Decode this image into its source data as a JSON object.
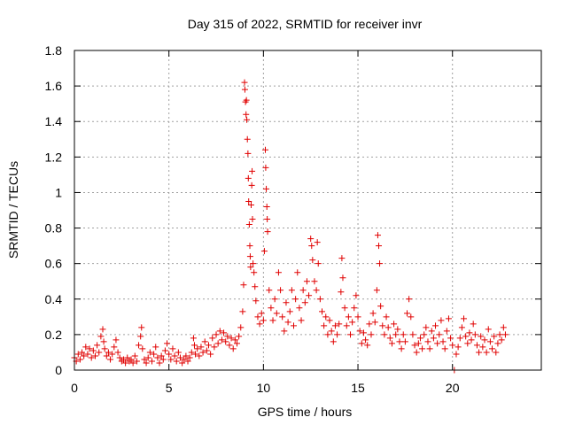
{
  "chart_data": {
    "type": "scatter",
    "title": "Day 315 of 2022, SRMTID for receiver invr",
    "xlabel": "GPS time / hours",
    "ylabel": "SRMTID / TECUs",
    "xlim": [
      0,
      24.7
    ],
    "ylim": [
      0,
      1.8
    ],
    "xticks": [
      0,
      5,
      10,
      15,
      20
    ],
    "xtick_labels": [
      "0",
      "5",
      "10",
      "15",
      "20"
    ],
    "yticks": [
      0,
      0.2,
      0.4,
      0.6,
      0.8,
      1.0,
      1.2,
      1.4,
      1.6,
      1.8
    ],
    "ytick_labels": [
      "0",
      "0.2",
      "0.4",
      "0.6",
      "0.8",
      "1",
      "1.2",
      "1.4",
      "1.6",
      "1.8"
    ],
    "grid": true,
    "marker": "plus",
    "color": "#e00000",
    "series": [
      {
        "name": "SRMTID",
        "points": [
          [
            0.0,
            0.07
          ],
          [
            0.1,
            0.05
          ],
          [
            0.2,
            0.09
          ],
          [
            0.3,
            0.06
          ],
          [
            0.4,
            0.1
          ],
          [
            0.5,
            0.08
          ],
          [
            0.6,
            0.13
          ],
          [
            0.7,
            0.09
          ],
          [
            0.8,
            0.12
          ],
          [
            0.9,
            0.07
          ],
          [
            1.0,
            0.11
          ],
          [
            1.1,
            0.08
          ],
          [
            1.2,
            0.14
          ],
          [
            1.3,
            0.1
          ],
          [
            1.4,
            0.19
          ],
          [
            1.5,
            0.23
          ],
          [
            1.55,
            0.16
          ],
          [
            1.6,
            0.12
          ],
          [
            1.7,
            0.08
          ],
          [
            1.8,
            0.1
          ],
          [
            1.9,
            0.06
          ],
          [
            2.0,
            0.09
          ],
          [
            2.1,
            0.13
          ],
          [
            2.2,
            0.17
          ],
          [
            2.3,
            0.1
          ],
          [
            2.4,
            0.07
          ],
          [
            2.5,
            0.05
          ],
          [
            2.6,
            0.06
          ],
          [
            2.7,
            0.04
          ],
          [
            2.8,
            0.07
          ],
          [
            2.9,
            0.05
          ],
          [
            3.0,
            0.06
          ],
          [
            3.1,
            0.04
          ],
          [
            3.2,
            0.08
          ],
          [
            3.3,
            0.05
          ],
          [
            3.4,
            0.14
          ],
          [
            3.5,
            0.19
          ],
          [
            3.55,
            0.24
          ],
          [
            3.6,
            0.12
          ],
          [
            3.7,
            0.06
          ],
          [
            3.8,
            0.04
          ],
          [
            3.9,
            0.07
          ],
          [
            4.0,
            0.1
          ],
          [
            4.1,
            0.05
          ],
          [
            4.2,
            0.09
          ],
          [
            4.3,
            0.13
          ],
          [
            4.4,
            0.07
          ],
          [
            4.5,
            0.04
          ],
          [
            4.6,
            0.08
          ],
          [
            4.7,
            0.06
          ],
          [
            4.8,
            0.11
          ],
          [
            4.9,
            0.15
          ],
          [
            5.0,
            0.09
          ],
          [
            5.1,
            0.06
          ],
          [
            5.2,
            0.12
          ],
          [
            5.3,
            0.08
          ],
          [
            5.4,
            0.05
          ],
          [
            5.5,
            0.1
          ],
          [
            5.6,
            0.07
          ],
          [
            5.7,
            0.04
          ],
          [
            5.8,
            0.06
          ],
          [
            5.9,
            0.08
          ],
          [
            6.0,
            0.05
          ],
          [
            6.1,
            0.07
          ],
          [
            6.2,
            0.1
          ],
          [
            6.3,
            0.18
          ],
          [
            6.35,
            0.14
          ],
          [
            6.4,
            0.09
          ],
          [
            6.5,
            0.12
          ],
          [
            6.6,
            0.08
          ],
          [
            6.7,
            0.13
          ],
          [
            6.8,
            0.1
          ],
          [
            6.9,
            0.16
          ],
          [
            7.0,
            0.11
          ],
          [
            7.1,
            0.14
          ],
          [
            7.2,
            0.09
          ],
          [
            7.3,
            0.18
          ],
          [
            7.4,
            0.13
          ],
          [
            7.5,
            0.2
          ],
          [
            7.6,
            0.15
          ],
          [
            7.7,
            0.22
          ],
          [
            7.8,
            0.17
          ],
          [
            7.9,
            0.21
          ],
          [
            8.0,
            0.16
          ],
          [
            8.1,
            0.19
          ],
          [
            8.2,
            0.14
          ],
          [
            8.3,
            0.18
          ],
          [
            8.4,
            0.12
          ],
          [
            8.5,
            0.17
          ],
          [
            8.6,
            0.15
          ],
          [
            8.7,
            0.19
          ],
          [
            8.8,
            0.24
          ],
          [
            8.9,
            0.33
          ],
          [
            8.95,
            0.48
          ],
          [
            9.0,
            1.62
          ],
          [
            9.02,
            1.58
          ],
          [
            9.05,
            1.51
          ],
          [
            9.08,
            1.44
          ],
          [
            9.1,
            1.52
          ],
          [
            9.12,
            1.41
          ],
          [
            9.15,
            1.3
          ],
          [
            9.18,
            1.22
          ],
          [
            9.2,
            1.08
          ],
          [
            9.22,
            0.95
          ],
          [
            9.25,
            0.82
          ],
          [
            9.28,
            0.7
          ],
          [
            9.3,
            0.64
          ],
          [
            9.32,
            0.58
          ],
          [
            9.35,
            0.93
          ],
          [
            9.38,
            1.04
          ],
          [
            9.4,
            1.12
          ],
          [
            9.42,
            0.85
          ],
          [
            9.45,
            0.6
          ],
          [
            9.5,
            0.55
          ],
          [
            9.55,
            0.47
          ],
          [
            9.6,
            0.39
          ],
          [
            9.7,
            0.3
          ],
          [
            9.8,
            0.26
          ],
          [
            9.9,
            0.32
          ],
          [
            10.0,
            0.28
          ],
          [
            10.05,
            0.67
          ],
          [
            10.1,
            1.24
          ],
          [
            10.12,
            1.14
          ],
          [
            10.15,
            1.02
          ],
          [
            10.18,
            0.92
          ],
          [
            10.2,
            0.85
          ],
          [
            10.22,
            0.78
          ],
          [
            10.3,
            0.45
          ],
          [
            10.4,
            0.35
          ],
          [
            10.5,
            0.28
          ],
          [
            10.6,
            0.4
          ],
          [
            10.7,
            0.32
          ],
          [
            10.8,
            0.55
          ],
          [
            10.9,
            0.45
          ],
          [
            11.0,
            0.3
          ],
          [
            11.1,
            0.22
          ],
          [
            11.2,
            0.38
          ],
          [
            11.3,
            0.27
          ],
          [
            11.4,
            0.33
          ],
          [
            11.5,
            0.45
          ],
          [
            11.6,
            0.25
          ],
          [
            11.7,
            0.4
          ],
          [
            11.8,
            0.55
          ],
          [
            11.9,
            0.35
          ],
          [
            12.0,
            0.28
          ],
          [
            12.1,
            0.45
          ],
          [
            12.2,
            0.38
          ],
          [
            12.3,
            0.5
          ],
          [
            12.4,
            0.42
          ],
          [
            12.5,
            0.74
          ],
          [
            12.55,
            0.7
          ],
          [
            12.6,
            0.62
          ],
          [
            12.7,
            0.5
          ],
          [
            12.8,
            0.45
          ],
          [
            12.85,
            0.72
          ],
          [
            12.9,
            0.6
          ],
          [
            13.0,
            0.4
          ],
          [
            13.1,
            0.33
          ],
          [
            13.2,
            0.25
          ],
          [
            13.3,
            0.3
          ],
          [
            13.4,
            0.2
          ],
          [
            13.5,
            0.28
          ],
          [
            13.6,
            0.22
          ],
          [
            13.7,
            0.16
          ],
          [
            13.8,
            0.25
          ],
          [
            13.9,
            0.2
          ],
          [
            14.0,
            0.26
          ],
          [
            14.1,
            0.44
          ],
          [
            14.15,
            0.63
          ],
          [
            14.2,
            0.52
          ],
          [
            14.3,
            0.35
          ],
          [
            14.4,
            0.25
          ],
          [
            14.5,
            0.3
          ],
          [
            14.6,
            0.2
          ],
          [
            14.7,
            0.27
          ],
          [
            14.8,
            0.35
          ],
          [
            14.9,
            0.42
          ],
          [
            15.0,
            0.3
          ],
          [
            15.1,
            0.22
          ],
          [
            15.2,
            0.15
          ],
          [
            15.3,
            0.21
          ],
          [
            15.4,
            0.17
          ],
          [
            15.5,
            0.14
          ],
          [
            15.6,
            0.26
          ],
          [
            15.7,
            0.2
          ],
          [
            15.8,
            0.32
          ],
          [
            15.9,
            0.27
          ],
          [
            16.0,
            0.45
          ],
          [
            16.05,
            0.76
          ],
          [
            16.1,
            0.7
          ],
          [
            16.15,
            0.6
          ],
          [
            16.2,
            0.36
          ],
          [
            16.3,
            0.25
          ],
          [
            16.4,
            0.2
          ],
          [
            16.5,
            0.3
          ],
          [
            16.6,
            0.24
          ],
          [
            16.7,
            0.18
          ],
          [
            16.8,
            0.15
          ],
          [
            16.9,
            0.26
          ],
          [
            17.0,
            0.2
          ],
          [
            17.1,
            0.23
          ],
          [
            17.2,
            0.16
          ],
          [
            17.3,
            0.12
          ],
          [
            17.4,
            0.2
          ],
          [
            17.5,
            0.16
          ],
          [
            17.6,
            0.32
          ],
          [
            17.7,
            0.4
          ],
          [
            17.8,
            0.3
          ],
          [
            17.9,
            0.2
          ],
          [
            18.0,
            0.14
          ],
          [
            18.1,
            0.1
          ],
          [
            18.2,
            0.15
          ],
          [
            18.3,
            0.18
          ],
          [
            18.4,
            0.12
          ],
          [
            18.5,
            0.2
          ],
          [
            18.6,
            0.24
          ],
          [
            18.7,
            0.16
          ],
          [
            18.8,
            0.12
          ],
          [
            18.9,
            0.22
          ],
          [
            19.0,
            0.18
          ],
          [
            19.1,
            0.25
          ],
          [
            19.2,
            0.15
          ],
          [
            19.3,
            0.2
          ],
          [
            19.4,
            0.28
          ],
          [
            19.5,
            0.16
          ],
          [
            19.6,
            0.12
          ],
          [
            19.7,
            0.22
          ],
          [
            19.8,
            0.29
          ],
          [
            19.9,
            0.18
          ],
          [
            20.0,
            0.14
          ],
          [
            20.1,
            0.0
          ],
          [
            20.2,
            0.09
          ],
          [
            20.3,
            0.13
          ],
          [
            20.4,
            0.18
          ],
          [
            20.5,
            0.24
          ],
          [
            20.6,
            0.29
          ],
          [
            20.7,
            0.19
          ],
          [
            20.8,
            0.15
          ],
          [
            20.9,
            0.21
          ],
          [
            21.0,
            0.17
          ],
          [
            21.1,
            0.26
          ],
          [
            21.2,
            0.2
          ],
          [
            21.3,
            0.14
          ],
          [
            21.4,
            0.1
          ],
          [
            21.5,
            0.19
          ],
          [
            21.6,
            0.13
          ],
          [
            21.7,
            0.17
          ],
          [
            21.8,
            0.1
          ],
          [
            21.9,
            0.23
          ],
          [
            22.0,
            0.16
          ],
          [
            22.1,
            0.12
          ],
          [
            22.2,
            0.19
          ],
          [
            22.3,
            0.1
          ],
          [
            22.4,
            0.15
          ],
          [
            22.5,
            0.2
          ],
          [
            22.6,
            0.17
          ],
          [
            22.7,
            0.24
          ],
          [
            22.8,
            0.2
          ]
        ]
      }
    ]
  }
}
